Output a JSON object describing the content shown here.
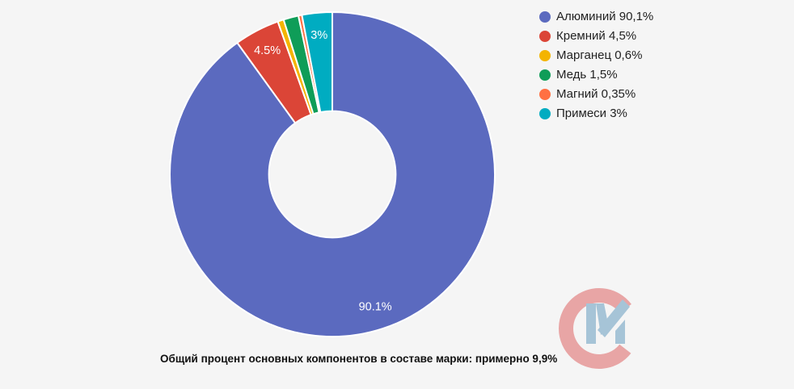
{
  "page": {
    "background": "#f5f5f5"
  },
  "chart_data": {
    "type": "pie",
    "donut": true,
    "hole_radius_ratio": 0.39,
    "start_angle_deg": 0,
    "direction": "clockwise",
    "legend_position": "right",
    "stroke_color": "#ffffff",
    "label_color": "#ffffff",
    "title": "",
    "categories": [
      "Алюминий",
      "Кремний",
      "Марганец",
      "Медь",
      "Магний",
      "Примеси"
    ],
    "values": [
      90.1,
      4.5,
      0.6,
      1.5,
      0.35,
      3
    ],
    "colors": [
      "#5b6abf",
      "#db4537",
      "#f4b400",
      "#0f9d58",
      "#ff7043",
      "#00acc1"
    ],
    "slice_labels": [
      "90.1%",
      "4.5%",
      "",
      "",
      "",
      "3%"
    ],
    "legend_items": [
      "Алюминий 90,1%",
      "Кремний 4,5%",
      "Марганец 0,6%",
      "Медь 1,5%",
      "Магний 0,35%",
      "Примеси 3%"
    ]
  },
  "caption": {
    "text": "Общий процент основных компонентов в составе марки: примерно 9,9%"
  },
  "logo": {
    "name": "cm-watermark",
    "c_color": "#e8a5a5",
    "m_color": "#a6c4d7"
  }
}
